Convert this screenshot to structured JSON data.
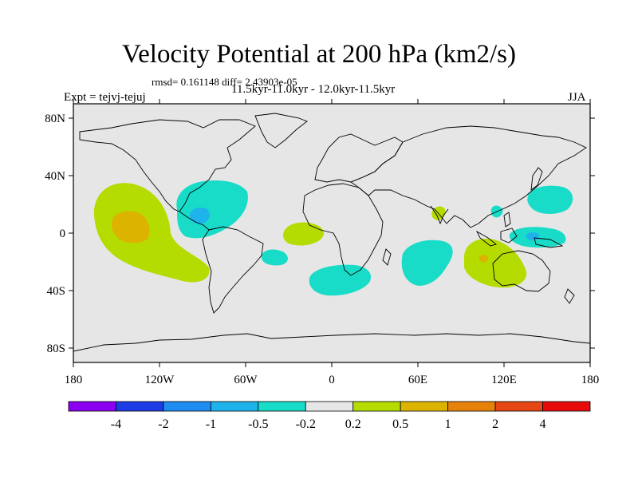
{
  "title": "Velocity Potential at 200 hPa (km2/s)",
  "stats": "rmsd= 0.161148 diff= 2.43903e-05",
  "period": "11.5kyr-11.0kyr - 12.0kyr-11.5kyr",
  "experiment": "Expt = tejvj-tejuj",
  "season": "JJA",
  "lat_ticks": [
    {
      "label": "80N",
      "lat": 80
    },
    {
      "label": "40N",
      "lat": 40
    },
    {
      "label": "0",
      "lat": 0
    },
    {
      "label": "40S",
      "lat": -40
    },
    {
      "label": "80S",
      "lat": -80
    }
  ],
  "lon_ticks": [
    {
      "label": "180",
      "lon": -180
    },
    {
      "label": "120W",
      "lon": -120
    },
    {
      "label": "60W",
      "lon": -60
    },
    {
      "label": "0",
      "lon": 0
    },
    {
      "label": "60E",
      "lon": 60
    },
    {
      "label": "120E",
      "lon": 120
    },
    {
      "label": "180",
      "lon": 180
    }
  ],
  "colorbar": {
    "colors": [
      "#8a00f0",
      "#1e3ce6",
      "#1e8cf0",
      "#1eb4eb",
      "#19dcc8",
      "#e6e6e6",
      "#b4dc00",
      "#dcb400",
      "#e6820a",
      "#e64614",
      "#e60a0a"
    ],
    "labels": [
      "-4",
      "-2",
      "-1",
      "-0.5",
      "-0.2",
      "0.2",
      "0.5",
      "1",
      "2",
      "4"
    ]
  },
  "colors": {
    "ocean": "#e6e6e6",
    "coast": "#000000"
  }
}
